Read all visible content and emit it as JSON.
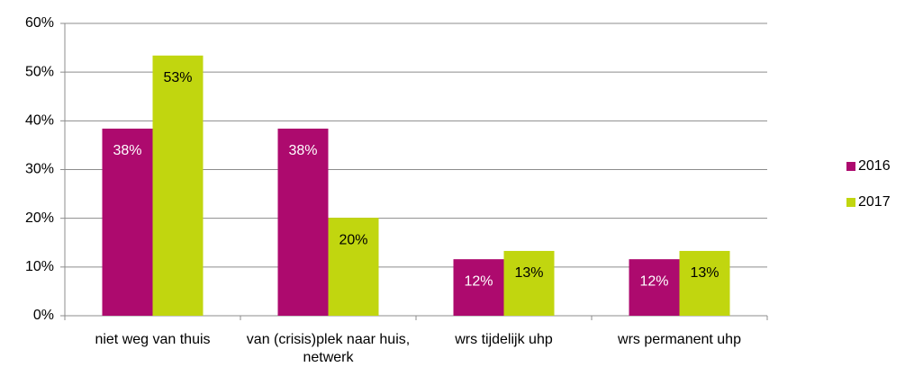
{
  "chart_data": {
    "type": "bar",
    "categories": [
      "niet weg van thuis",
      "van (crisis)plek naar huis, netwerk",
      "wrs tijdelijk uhp",
      "wrs permanent uhp"
    ],
    "series": [
      {
        "name": "2016",
        "color": "#ad0a6e",
        "label_color": "#ffffff",
        "values": [
          38.4,
          38.4,
          11.6,
          11.6
        ],
        "value_labels": [
          "38%",
          "38%",
          "12%",
          "12%"
        ]
      },
      {
        "name": "2017",
        "color": "#c1d60f",
        "label_color": "#000000",
        "values": [
          53.4,
          20.1,
          13.3,
          13.3
        ],
        "value_labels": [
          "53%",
          "20%",
          "13%",
          "13%"
        ]
      }
    ],
    "ylim": [
      0,
      60
    ],
    "yticks": [
      {
        "value": 0,
        "label": "0%"
      },
      {
        "value": 10,
        "label": "10%"
      },
      {
        "value": 20,
        "label": "20%"
      },
      {
        "value": 30,
        "label": "30%"
      },
      {
        "value": 40,
        "label": "40%"
      },
      {
        "value": 50,
        "label": "50%"
      },
      {
        "value": 60,
        "label": "60%"
      }
    ],
    "grid": true,
    "legend": "right"
  }
}
